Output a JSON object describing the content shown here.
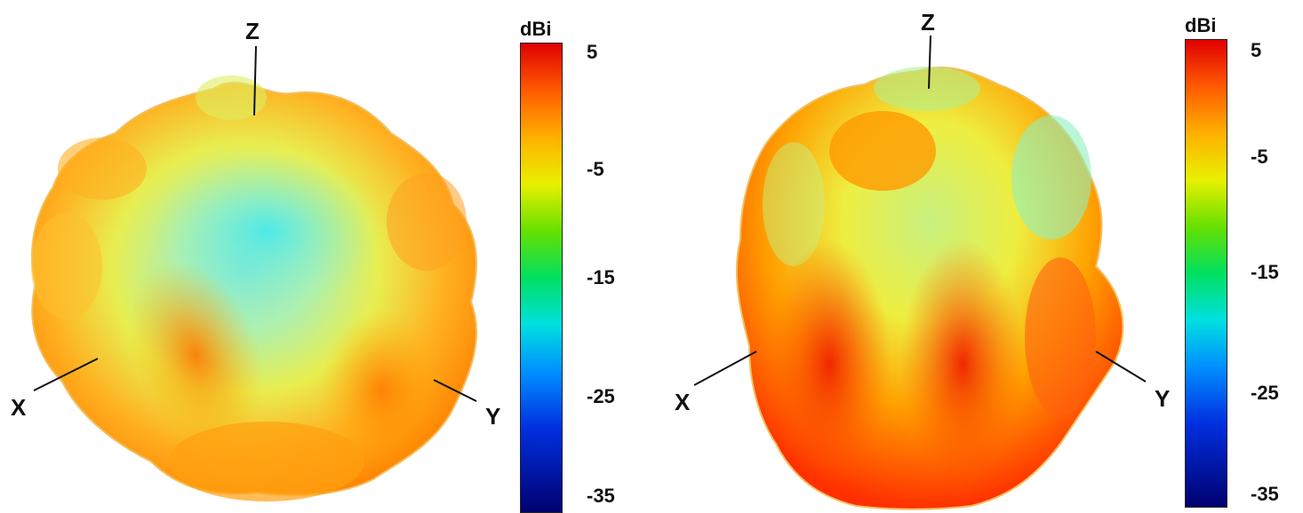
{
  "panels": [
    {
      "axis_labels": {
        "z": "Z",
        "x": "X",
        "y": "Y"
      },
      "colorbar": {
        "unit": "dBi",
        "ticks": [
          "5",
          "-5",
          "-15",
          "-25",
          "-35"
        ]
      }
    },
    {
      "axis_labels": {
        "z": "Z",
        "x": "X",
        "y": "Y"
      },
      "colorbar": {
        "unit": "dBi",
        "ticks": [
          "5",
          "-5",
          "-15",
          "-25",
          "-35"
        ]
      }
    }
  ],
  "colorbar_colors": [
    "#e00000",
    "#ff5a00",
    "#ffb000",
    "#e8f000",
    "#66e000",
    "#00e060",
    "#00e0e0",
    "#0090ff",
    "#0030e0",
    "#000070"
  ]
}
